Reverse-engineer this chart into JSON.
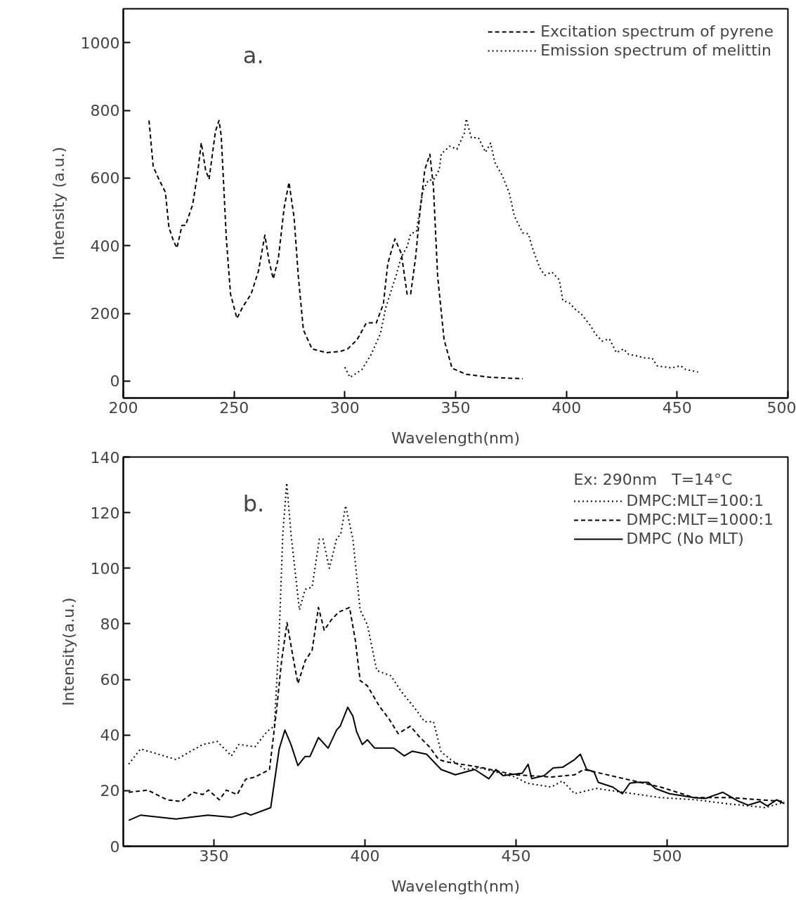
{
  "chart_data": [
    {
      "type": "line",
      "xlabel": "Wavelength(nm)",
      "ylabel": "Intensity (a.u.)",
      "xlim": [
        200,
        500
      ],
      "ylim": [
        -50,
        1100
      ],
      "xticks": [
        200,
        250,
        300,
        350,
        400,
        450,
        500
      ],
      "yticks": [
        0,
        200,
        400,
        600,
        800,
        1000
      ],
      "grid": false,
      "legend": "top right",
      "marker": "none",
      "annotations": [
        "a."
      ],
      "series": [
        {
          "name": "Excitation spectrum of pyrene",
          "color": "#000000",
          "line_style": "dashed",
          "x": [
            211.6,
            213.5,
            216.1,
            219.0,
            220.6,
            222.6,
            224.2,
            226.5,
            228.1,
            231.3,
            233.5,
            235.2,
            237.1,
            238.7,
            241.6,
            243.2,
            244.2,
            246.5,
            248.4,
            251.3,
            253.9,
            257.7,
            261.0,
            263.9,
            265.8,
            267.7,
            270.0,
            272.6,
            274.8,
            277.1,
            279.0,
            281.3,
            285.2,
            291.6,
            298.1,
            301.3,
            305.5,
            309.7,
            314.2,
            317.4,
            319.4,
            322.6,
            325.5,
            328.1,
            329.7,
            331.9,
            333.9,
            336.1,
            338.4,
            340.0,
            341.9,
            344.8,
            348.4,
            354.8,
            365.8,
            380.3
          ],
          "values": [
            770,
            634,
            596,
            558,
            454,
            415,
            393,
            460,
            460,
            521,
            612,
            704,
            625,
            596,
            738,
            770,
            725,
            422,
            257,
            185,
            219,
            257,
            325,
            431,
            354,
            302,
            363,
            512,
            587,
            483,
            309,
            151,
            95,
            84,
            88,
            95,
            122,
            172,
            172,
            228,
            348,
            420,
            377,
            257,
            257,
            363,
            499,
            625,
            670,
            573,
            309,
            122,
            38,
            20,
            11,
            7
          ]
        },
        {
          "name": "Emission spectrum of melittin",
          "color": "#000000",
          "line_style": "dotted",
          "x": [
            300,
            302.3,
            307.7,
            311.9,
            316.1,
            318.4,
            320.6,
            323.2,
            325.5,
            328.1,
            329.7,
            332.3,
            335.2,
            337.7,
            340,
            342.6,
            343.5,
            347.4,
            350.6,
            353.9,
            354.8,
            357.1,
            360.3,
            363.5,
            365.8,
            367.7,
            371,
            374.2,
            376.5,
            380.3,
            382.9,
            384.5,
            386.1,
            388.4,
            390.3,
            393.5,
            396.8,
            398.4,
            401.3,
            404.5,
            406.5,
            411,
            412.9,
            416.1,
            419.4,
            422.6,
            425.8,
            428.1,
            431.3,
            435.5,
            438.7,
            441,
            447.4,
            451.6,
            453.9,
            459.4
          ],
          "values": [
            41,
            11,
            34,
            79,
            141,
            215,
            261,
            313,
            367,
            397,
            435,
            442,
            562,
            594,
            594,
            624,
            671,
            694,
            685,
            732,
            775,
            719,
            719,
            676,
            703,
            646,
            608,
            556,
            488,
            438,
            435,
            397,
            367,
            329,
            313,
            322,
            299,
            238,
            231,
            209,
            200,
            163,
            141,
            118,
            125,
            84,
            95,
            79,
            75,
            68,
            68,
            45,
            39,
            45,
            34,
            27
          ]
        }
      ]
    },
    {
      "type": "line",
      "xlabel": "Wavelength(nm)",
      "ylabel": "Intensity(a.u.)",
      "xlim": [
        320,
        540
      ],
      "ylim": [
        0,
        140
      ],
      "xticks": [
        350,
        400,
        450,
        500
      ],
      "yticks": [
        0,
        20,
        40,
        60,
        80,
        100,
        120,
        140
      ],
      "grid": false,
      "legend": "top right",
      "legend_title": "Ex: 290nm   T=14°C",
      "marker": "none",
      "annotations": [
        "b."
      ],
      "series": [
        {
          "name": "DMPC:MLT=100:1",
          "color": "#000000",
          "line_style": "dotted",
          "x": [
            321.8,
            325.7,
            337.5,
            346.3,
            351.1,
            355.8,
            358.2,
            363.6,
            367.6,
            370.0,
            371.6,
            372.8,
            374.1,
            375.5,
            378.3,
            380.2,
            382.5,
            384.9,
            386.1,
            388.2,
            390.6,
            392.0,
            393.6,
            396.0,
            398.4,
            400.8,
            403.9,
            408.6,
            411.9,
            416.6,
            419.7,
            422.7,
            425.2,
            428.4,
            433.2,
            438.1,
            449.7,
            453.6,
            461.6,
            465.4,
            469.4,
            476.5,
            497.8,
            509.7,
            519.8,
            532.6,
            538.8
          ],
          "values": [
            29.5,
            35,
            31.2,
            36.6,
            37.7,
            32.5,
            36.6,
            35.8,
            41.3,
            43.2,
            76,
            112.4,
            130.7,
            112.4,
            85,
            92.4,
            93.2,
            110.5,
            110.5,
            100,
            110.5,
            112.4,
            122.5,
            110.5,
            85,
            79.6,
            63.2,
            61.3,
            55.8,
            49.5,
            44.8,
            44.8,
            33.9,
            31.2,
            27.6,
            28.2,
            24.9,
            22.7,
            21.3,
            23.5,
            18.9,
            20.8,
            17.5,
            16.7,
            15.3,
            13.9,
            15.9
          ]
        },
        {
          "name": "DMPC:MLT=1000:1",
          "color": "#000000",
          "line_style": "dashed",
          "x": [
            321.8,
            328.1,
            334.5,
            339.2,
            343.2,
            346.3,
            348.2,
            351.8,
            354.1,
            357.7,
            360.5,
            363.6,
            368.4,
            370.7,
            372.4,
            374.2,
            376.4,
            377.8,
            380.2,
            382.5,
            384.6,
            386.5,
            388.9,
            391.3,
            394.9,
            396.8,
            398.4,
            400.8,
            404.8,
            407.9,
            411.0,
            415.0,
            418.0,
            421.3,
            424.4,
            426.8,
            438.1,
            449.7,
            461.6,
            469.4,
            472.4,
            475.8,
            497.8,
            508.9,
            520.8,
            538.8
          ],
          "values": [
            19.4,
            20.2,
            16.7,
            16.1,
            19.4,
            18.6,
            20.2,
            16.7,
            20.2,
            18.6,
            24.1,
            24.9,
            27.6,
            48.7,
            66.7,
            80.4,
            66.7,
            58.5,
            66.7,
            70.5,
            85.9,
            77.7,
            81.5,
            84.2,
            85.9,
            74.1,
            59.6,
            57.7,
            50.3,
            45.9,
            40.5,
            43.2,
            39.4,
            35.8,
            31.2,
            30.4,
            28.4,
            25.7,
            24.9,
            25.7,
            27.6,
            26.8,
            21.3,
            17.5,
            17.5,
            16.1
          ]
        },
        {
          "name": "DMPC (No MLT)",
          "color": "#000000",
          "line_style": "solid",
          "x": [
            321.8,
            325.8,
            337.5,
            348.0,
            355.8,
            360.5,
            362.2,
            367.6,
            368.8,
            371.6,
            373.5,
            375.5,
            377.8,
            380.2,
            381.8,
            384.6,
            387.8,
            390.6,
            391.8,
            394.3,
            396.0,
            397.2,
            399.1,
            400.8,
            403.2,
            409.5,
            413.0,
            415.7,
            420.4,
            425.2,
            429.9,
            436.3,
            441.0,
            443.3,
            445.7,
            452.1,
            454.0,
            455.2,
            459.3,
            462.3,
            465.4,
            469.4,
            471.3,
            473.4,
            475.8,
            477.2,
            482.0,
            485.2,
            487.7,
            490.0,
            493.8,
            496.1,
            500.8,
            508.9,
            512.7,
            518.4,
            523.8,
            526.8,
            530.8,
            533.2,
            536.3,
            538.8
          ],
          "values": [
            9.3,
            11.2,
            9.8,
            11.2,
            10.4,
            12,
            11.2,
            13.4,
            13.9,
            35,
            41.8,
            36.6,
            29,
            32.3,
            32.3,
            39.1,
            35.3,
            41.8,
            43.2,
            50,
            46.8,
            41.3,
            36.6,
            38.3,
            35.3,
            35.3,
            32.5,
            34.2,
            33.1,
            27.6,
            25.7,
            27.6,
            24.3,
            27.6,
            25.4,
            26.3,
            29.5,
            24.3,
            25.4,
            28.2,
            28.4,
            31.2,
            33.1,
            27.6,
            26.8,
            23,
            21.3,
            18.9,
            22.7,
            23,
            23,
            20.8,
            18.9,
            17.5,
            17.2,
            19.4,
            16.1,
            14.8,
            16.1,
            14.5,
            16.7,
            15.3
          ]
        }
      ]
    }
  ]
}
